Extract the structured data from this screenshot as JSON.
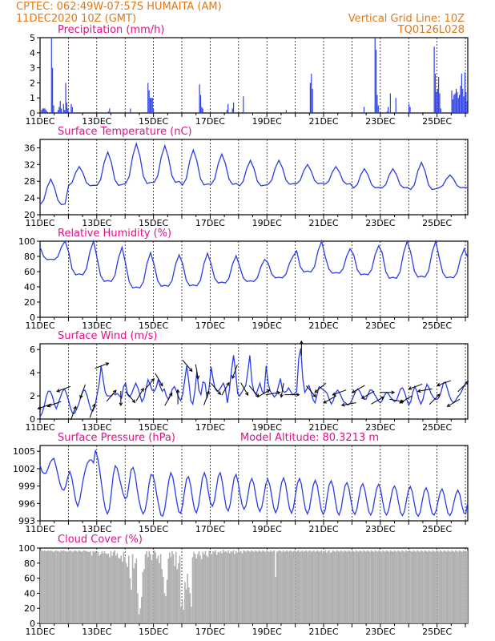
{
  "header": {
    "line1": "CPTEC:   062:49W-07:57S   HUMAITA (AM)",
    "line2": "11DEC2020 10Z (GMT)",
    "grid_note": "Vertical Grid Line: 10Z",
    "model_code": "TQ0126L028"
  },
  "colors": {
    "header": "#e07818",
    "title": "#e0108c",
    "line": "#2b3de8",
    "bar": "#2b3de8",
    "cloud": "#b0b0b0"
  },
  "chart_data": [
    {
      "id": "precip",
      "type": "bar",
      "title": "Precipitation (mm/h)",
      "xlabel": "",
      "ylabel": "",
      "x_start": "11DEC2020 10Z",
      "x_end": "26DEC2020 12Z",
      "x_step_hours": 3,
      "ylim": [
        0,
        5
      ],
      "yticks": [
        0,
        1,
        2,
        3,
        4,
        5
      ],
      "xtick_labels": [
        "11DEC",
        "13DEC",
        "15DEC",
        "17DEC",
        "19DEC",
        "21DEC",
        "23DEC",
        "25DEC"
      ],
      "values": [
        0,
        0.2,
        0.3,
        0.3,
        0.3,
        0.2,
        0.1,
        0,
        0,
        0,
        5,
        3,
        0.5,
        0,
        0,
        0,
        0.2,
        0.4,
        0.8,
        0.3,
        0,
        0.6,
        0.2,
        2,
        0.7,
        0.3,
        0,
        0,
        0.6,
        0.4,
        0,
        0,
        0,
        0,
        0,
        0,
        0,
        0,
        0,
        0,
        0,
        0,
        0,
        0,
        0,
        0,
        0,
        0,
        0,
        0,
        0,
        0,
        0,
        0,
        0,
        0,
        0,
        0,
        0,
        0,
        0,
        0,
        0.1,
        0.3,
        0,
        0,
        0,
        0,
        0,
        0,
        0,
        0,
        0,
        0,
        0,
        0,
        0,
        0,
        0,
        0,
        0,
        0,
        0.3,
        0,
        0,
        0,
        0,
        0,
        0,
        0,
        0,
        0,
        0,
        0,
        0,
        0,
        0,
        0,
        2,
        1.5,
        1,
        1,
        1,
        0.3,
        0,
        0,
        0,
        0,
        0,
        0,
        0,
        0,
        0,
        0,
        0,
        0,
        0,
        0,
        0,
        0,
        0,
        0,
        0,
        0,
        0,
        0,
        0,
        0,
        0,
        0,
        0,
        0,
        0,
        0,
        0,
        0,
        0,
        0,
        0,
        0,
        0,
        0,
        0,
        0,
        0,
        1.9,
        1.2,
        0.4,
        0.3,
        0,
        0,
        0,
        0,
        0,
        0,
        0,
        0,
        0,
        0,
        0,
        0,
        0,
        0,
        0,
        0,
        0,
        0,
        0,
        0,
        0,
        0.2,
        0.6,
        0,
        0,
        0,
        0.3,
        0.7,
        0,
        0,
        0,
        0,
        0,
        0,
        0,
        0,
        1.1,
        0,
        0,
        0,
        0,
        0,
        0,
        0,
        0,
        0,
        0,
        0,
        0,
        0,
        0,
        0,
        0,
        0,
        0,
        0,
        0,
        0,
        0,
        0,
        0,
        0,
        0,
        0,
        0,
        0,
        0,
        0,
        0,
        0,
        0,
        0,
        0,
        0,
        0,
        0.2,
        0,
        0,
        0,
        0,
        0,
        0,
        0,
        0,
        0,
        0,
        0,
        0,
        0,
        0,
        0,
        0,
        0,
        0,
        0,
        0,
        0,
        2,
        2.6,
        1.6,
        0,
        0,
        0,
        0,
        0,
        0,
        0,
        0,
        0,
        0,
        0,
        0,
        0,
        0,
        0,
        0,
        0,
        0,
        0,
        0,
        0,
        0,
        0,
        0,
        0,
        0,
        0,
        0,
        0,
        0,
        0,
        0,
        0,
        0,
        0,
        0,
        0,
        0,
        0,
        0,
        0,
        0,
        0,
        0,
        0,
        0,
        0.4,
        0,
        0,
        0,
        0,
        0,
        0,
        0,
        0,
        0,
        5,
        4.2,
        1.2,
        0.5,
        0,
        0,
        0,
        0,
        0,
        0,
        0,
        0.1,
        0.4,
        0,
        1.3,
        0,
        0,
        0,
        0,
        1,
        0,
        0,
        0,
        0,
        0,
        0,
        0,
        0,
        0,
        0,
        0,
        0.6,
        0.4,
        0,
        0,
        0,
        0,
        0,
        0,
        0,
        0,
        0,
        0,
        0,
        0,
        0,
        0,
        0,
        0,
        0,
        0,
        0,
        0,
        0,
        4.4,
        2.6,
        1.4,
        1.6,
        2.4,
        1.3,
        0.3,
        0,
        0,
        0,
        0,
        0,
        0,
        0,
        0,
        0,
        1.5,
        0.9,
        1.2,
        1.3,
        1.6,
        1.4,
        1,
        1.2,
        1.8,
        2.6,
        1.6,
        1.1,
        2.7,
        1.4,
        0.8
      ]
    },
    {
      "id": "temp",
      "type": "line",
      "title": "Surface Temperature (nC)",
      "xlabel": "",
      "ylabel": "",
      "ylim": [
        20,
        38
      ],
      "yticks": [
        20,
        24,
        28,
        32,
        36
      ],
      "xtick_labels": [
        "11DEC",
        "13DEC",
        "15DEC",
        "17DEC",
        "19DEC",
        "21DEC",
        "23DEC",
        "25DEC"
      ],
      "max": [
        28.5,
        31.5,
        35,
        37,
        36.5,
        35.5,
        34.5,
        33,
        33,
        32,
        31.5,
        31,
        31,
        32.5,
        29.5
      ],
      "min": [
        20.5,
        25.5,
        24.5,
        24.5,
        25,
        24.5,
        25,
        25,
        25.5,
        26,
        26,
        25,
        25,
        24,
        25.5
      ]
    },
    {
      "id": "rh",
      "type": "line",
      "title": "Relative Humidity (%)",
      "xlabel": "",
      "ylabel": "",
      "ylim": [
        0,
        100
      ],
      "yticks": [
        0,
        20,
        40,
        60,
        80,
        100
      ],
      "xtick_labels": [
        "11DEC",
        "13DEC",
        "15DEC",
        "17DEC",
        "19DEC",
        "21DEC",
        "23DEC",
        "25DEC"
      ],
      "max": [
        100,
        100,
        92,
        85,
        82,
        84,
        81,
        76,
        80,
        100,
        90,
        94,
        100,
        100,
        90
      ],
      "min": [
        68,
        42,
        33,
        24,
        28,
        28,
        34,
        38,
        43,
        47,
        48,
        44,
        36,
        38,
        40
      ]
    },
    {
      "id": "wind",
      "type": "line",
      "title": "Surface Wind (m/s)",
      "xlabel": "",
      "ylabel": "",
      "ylim": [
        0,
        6.5
      ],
      "yticks": [
        0,
        2,
        4,
        6
      ],
      "xtick_labels": [
        "11DEC",
        "13DEC",
        "15DEC",
        "17DEC",
        "19DEC",
        "21DEC",
        "23DEC",
        "25DEC"
      ],
      "values": [
        0.2,
        0.5,
        1.1,
        1.9,
        2.4,
        2.4,
        2,
        1.3,
        0.9,
        1.4,
        1.9,
        2.4,
        2.6,
        2.2,
        1.6,
        0.9,
        0.5,
        0.5,
        0.9,
        1.3,
        1.9,
        2.4,
        2.5,
        2.1,
        1.4,
        0.8,
        0.7,
        1.2,
        2.1,
        3,
        4.6,
        3.4,
        2.3,
        2,
        2,
        2,
        2.2,
        2.1,
        2.2,
        2,
        1.8,
        2.8,
        3.1,
        2.1,
        1.9,
        2.2,
        2.7,
        3.1,
        2.7,
        2.1,
        1.5,
        1.8,
        2.6,
        3.4,
        3,
        2.5,
        2.4,
        2.7,
        3.4,
        2.8,
        2.4,
        2.6,
        2,
        1.7,
        2.1,
        2.6,
        2.8,
        2.4,
        1.9,
        1.6,
        2.1,
        3.3,
        4.6,
        3.3,
        1.6,
        1.3,
        2.4,
        4.1,
        2.5,
        2.1,
        3.2,
        3.1,
        1.8,
        2.7,
        4.5,
        3.4,
        2.6,
        2.4,
        2.5,
        2.8,
        3.1,
        2.6,
        1.4,
        2.6,
        4.2,
        5.5,
        4.1,
        2.2,
        2,
        2.3,
        2.6,
        2.9,
        4.1,
        5.5,
        3.2,
        2.4,
        2.1,
        2.6,
        3.1,
        2.4,
        2.2,
        4.6,
        3.1,
        2.4,
        2.2,
        1.9,
        2.1,
        2.8,
        3.5,
        2.5,
        2.3,
        2.4,
        2.7,
        2.4,
        2.1,
        2.2,
        2.4,
        5.2,
        6.1,
        3.5,
        2.3,
        2.6,
        2.9,
        2.4,
        1.7,
        1.4,
        2.1,
        2.8,
        2.7,
        2.5,
        2.4,
        2.2,
        1.7,
        1.3,
        1.6,
        2.2,
        2.5,
        2.3,
        1.9,
        1.5,
        1.4,
        1.2,
        1.3,
        1.6,
        2,
        2.4,
        2.6,
        2.4,
        2,
        1.7,
        1.7,
        2.1,
        2.5,
        2.5,
        2.2,
        1.9,
        1.6,
        1.4,
        1.6,
        2,
        2.3,
        2.2,
        1.9,
        1.7,
        1.5,
        1.6,
        2.1,
        2.6,
        2.7,
        2.3,
        1.7,
        1.2,
        1.5,
        2.3,
        2.8,
        2.4,
        1.7,
        1.3,
        1.7,
        2.5,
        3,
        2.7,
        2.2,
        1.9,
        1.7,
        1.7,
        1.9,
        2.4,
        3.1,
        3.2,
        2.6,
        2,
        1.6,
        1.4,
        1.6,
        1.9,
        2.1,
        2.4,
        2.8,
        3.1,
        3
      ],
      "arrows_deg": [
        250,
        250,
        250,
        20,
        200,
        20,
        70,
        40,
        180,
        140,
        30,
        40,
        150,
        30,
        0,
        140,
        170,
        20,
        140,
        30,
        200,
        150,
        140,
        60,
        80,
        190,
        90,
        0,
        140,
        230,
        240,
        250,
        260,
        240,
        240,
        60,
        90,
        100,
        240,
        250,
        260,
        45,
        250,
        240,
        45
      ]
    },
    {
      "id": "pres",
      "type": "line",
      "title": "Surface Pressure (hPa)",
      "subtitle": "Model Altitude: 80.3213 m",
      "xlabel": "",
      "ylabel": "",
      "ylim": [
        993,
        1006
      ],
      "yticks": [
        993,
        996,
        999,
        1002,
        1005
      ],
      "xtick_labels": [
        "11DEC",
        "13DEC",
        "15DEC",
        "17DEC",
        "19DEC",
        "21DEC",
        "23DEC",
        "25DEC"
      ],
      "values": [
        1002.6,
        1001.5,
        1001.2,
        1001.2,
        1002,
        1003,
        1003.5,
        1003.8,
        1002.5,
        1001,
        999.5,
        998.5,
        998.3,
        999,
        1000.5,
        1001.5,
        1000.5,
        998.5,
        996.5,
        995.5,
        996.5,
        998.5,
        1000.5,
        1002,
        1003,
        1003.5,
        1003.5,
        1003,
        1005.2,
        1004,
        1002,
        999.5,
        997,
        995,
        994.2,
        995,
        997.8,
        1001,
        1002.5,
        1002,
        1000.5,
        999,
        997.6,
        996.8,
        997.2,
        999.5,
        1001.8,
        1002.2,
        1001,
        998.6,
        996.5,
        995,
        994.2,
        994.8,
        996.6,
        999.3,
        1001,
        1000.8,
        999.5,
        997.3,
        995.6,
        994,
        993.8,
        995.1,
        997.5,
        999.9,
        1001.3,
        1000.6,
        998.6,
        996.4,
        994.6,
        994.3,
        995.7,
        998.2,
        1000.2,
        1000.6,
        999.2,
        996.8,
        995,
        994.4,
        995.6,
        998,
        1000.4,
        1001.3,
        1000.2,
        998,
        996.2,
        995.5,
        996.4,
        998.5,
        1000.7,
        1001.3,
        999.8,
        997.4,
        995.3,
        994.7,
        995.8,
        998.2,
        1000.4,
        1001,
        999.7,
        997.6,
        995.8,
        995,
        995.6,
        997.5,
        999.6,
        1000.3,
        999.3,
        997.2,
        995.4,
        994.6,
        995.4,
        997.3,
        999.3,
        1000.2,
        999.2,
        997.2,
        995.3,
        994.4,
        995.2,
        997.5,
        999.6,
        1000.4,
        999.3,
        997.1,
        995.1,
        994.3,
        995.3,
        997.5,
        999.5,
        1000.3,
        999.3,
        997,
        995,
        994.2,
        995,
        997.2,
        999.2,
        1000,
        999.1,
        996.9,
        994.9,
        994.1,
        994.9,
        997.2,
        999.2,
        999.9,
        998.9,
        996.7,
        994.7,
        994,
        995,
        997.2,
        999,
        999.6,
        998.6,
        996.5,
        994.7,
        994.1,
        995,
        997,
        998.8,
        999.4,
        998.4,
        996.4,
        994.6,
        994,
        994.8,
        996.8,
        998.6,
        999.3,
        998.4,
        996.4,
        994.6,
        994,
        994.8,
        996.6,
        998.4,
        999,
        998.2,
        996.2,
        994.5,
        993.9,
        994.6,
        996.5,
        998.2,
        998.9,
        998,
        996,
        994.3,
        993.8,
        994.5,
        996.4,
        998.1,
        998.7,
        997.8,
        995.8,
        994.3,
        994,
        994.7,
        996.3,
        997.9,
        998.5,
        997.6,
        995.8,
        994.3,
        993.9,
        994.6,
        996.2,
        997.6,
        998.3,
        997.5,
        995.7,
        994.4,
        994.2,
        996.3
      ],
      "values_note": ""
    },
    {
      "id": "cloud",
      "type": "bar",
      "title": "Cloud Cover (%)",
      "xlabel": "",
      "ylabel": "",
      "ylim": [
        0,
        100
      ],
      "yticks": [
        0,
        20,
        40,
        60,
        80,
        100
      ],
      "xtick_labels": [
        "11DEC",
        "13DEC",
        "15DEC",
        "17DEC",
        "19DEC",
        "21DEC",
        "23DEC",
        "25DEC"
      ],
      "values": [
        97,
        97,
        96,
        97,
        96,
        96,
        97,
        96,
        97,
        96,
        95,
        96,
        97,
        96,
        96,
        95,
        97,
        96,
        97,
        96,
        96,
        95,
        96,
        97,
        96,
        95,
        96,
        97,
        96,
        95,
        97,
        96,
        95,
        96,
        97,
        96,
        96,
        95,
        95,
        96,
        90,
        96,
        95,
        96,
        93,
        95,
        90,
        92,
        96,
        93,
        96,
        93,
        92,
        93,
        88,
        96,
        90,
        95,
        97,
        90,
        93,
        87,
        86,
        90,
        82,
        95,
        88,
        80,
        75,
        90,
        60,
        45,
        92,
        73,
        80,
        86,
        40,
        12,
        20,
        35,
        68,
        72,
        92,
        96,
        88,
        96,
        92,
        84,
        92,
        97,
        94,
        86,
        90,
        80,
        92,
        72,
        62,
        40,
        36,
        58,
        86,
        94,
        88,
        96,
        92,
        76,
        95,
        72,
        80,
        90,
        22,
        30,
        18,
        55,
        45,
        66,
        48,
        40,
        22,
        88,
        95,
        92,
        86,
        92,
        96,
        90,
        85,
        95,
        92,
        96,
        90,
        88,
        96,
        93,
        92,
        96,
        95,
        97,
        91,
        95,
        94,
        96,
        93,
        98,
        95,
        96,
        94,
        97,
        93,
        96,
        95,
        97,
        92,
        96,
        94,
        98,
        95,
        96,
        93,
        97,
        96,
        95,
        97,
        96,
        95,
        97,
        96,
        95,
        97,
        96,
        95,
        97,
        96,
        95,
        97,
        96,
        95,
        97,
        96,
        95,
        97,
        95,
        96,
        97,
        62,
        95,
        96,
        97,
        96,
        95,
        97,
        95,
        96,
        97,
        95,
        96,
        97,
        95,
        96,
        97,
        95,
        96,
        97,
        95,
        96,
        97,
        95,
        96,
        97,
        95,
        96,
        97,
        95,
        96,
        97,
        95,
        96,
        97,
        95,
        96,
        97,
        94,
        95,
        97,
        94,
        96,
        97,
        94,
        95,
        97,
        96,
        95,
        97,
        96,
        95,
        97,
        96,
        95,
        97,
        96,
        95,
        97,
        96,
        95,
        97,
        96,
        95,
        97,
        96,
        95,
        97,
        96,
        95,
        97,
        96,
        95,
        97,
        96,
        95,
        97,
        96,
        95,
        97,
        96,
        95,
        97,
        96,
        95,
        97,
        96,
        95,
        97,
        96,
        95,
        97,
        96,
        95,
        97,
        96,
        95,
        97,
        96,
        95,
        97,
        96,
        95,
        97,
        96,
        95,
        97,
        96,
        95,
        97,
        96,
        95,
        97,
        96,
        95,
        97,
        96,
        95,
        97,
        96,
        95,
        97,
        96,
        95,
        97,
        96,
        95,
        97,
        96,
        95,
        97,
        96,
        95,
        97,
        96,
        95,
        97,
        96,
        95,
        97,
        96,
        95,
        97,
        96,
        95,
        97,
        96,
        95,
        97,
        96,
        95,
        97
      ]
    }
  ]
}
